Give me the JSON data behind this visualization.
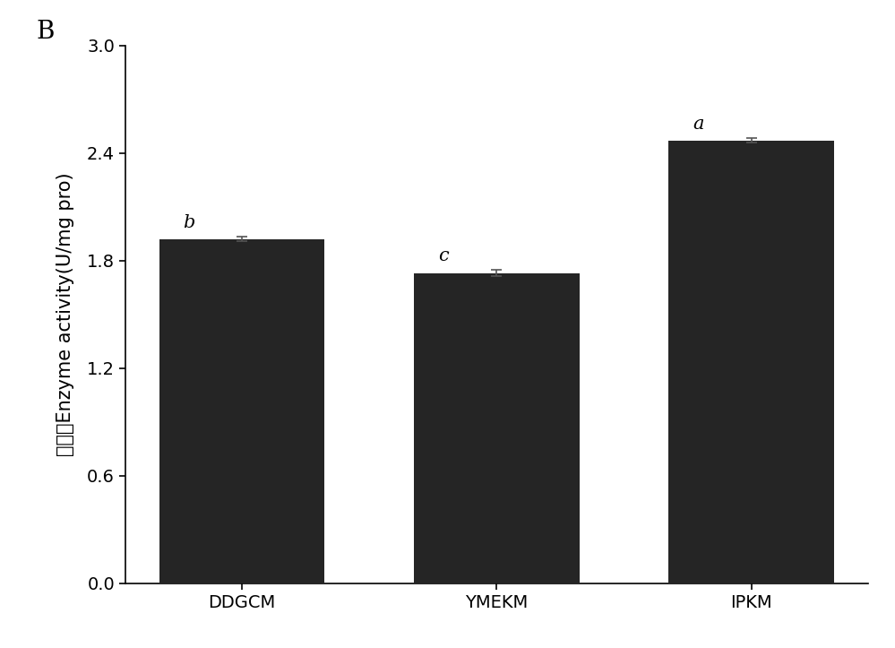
{
  "categories": [
    "DDGCM",
    "YMEKM",
    "IPKM"
  ],
  "values": [
    1.92,
    1.73,
    2.47
  ],
  "errors": [
    0.012,
    0.018,
    0.012
  ],
  "bar_color": "#252525",
  "bar_width": 0.65,
  "ylabel_chinese": "酶活力",
  "ylabel_english": "Enzyme activity(U/mg pro)",
  "ylim": [
    0,
    3.0
  ],
  "yticks": [
    0.0,
    0.6,
    1.2,
    1.8,
    2.4,
    3.0
  ],
  "significance_labels": [
    "b",
    "c",
    "a"
  ],
  "panel_label": "B",
  "background_color": "#ffffff",
  "label_fontsize": 15,
  "tick_fontsize": 14,
  "sig_fontsize": 15
}
